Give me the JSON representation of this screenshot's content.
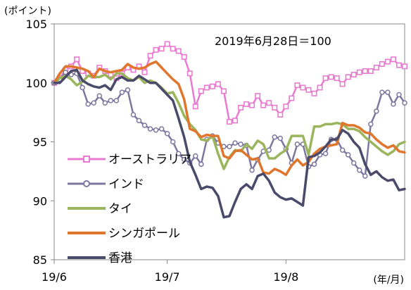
{
  "chart_data": {
    "type": "line",
    "title": "",
    "annotation": "2019年6月28日＝100",
    "ylabel": "(ポイント)",
    "xlabel": "(年/月)",
    "ylim": [
      85,
      105
    ],
    "yticks": [
      85,
      90,
      95,
      100,
      105
    ],
    "xlim": [
      0,
      62
    ],
    "xticks": [
      {
        "pos": 0,
        "label": "19/6"
      },
      {
        "pos": 20,
        "label": "19/7"
      },
      {
        "pos": 41,
        "label": "19/8"
      }
    ],
    "x": [
      0,
      1,
      2,
      3,
      4,
      5,
      6,
      7,
      8,
      9,
      10,
      11,
      12,
      13,
      14,
      15,
      16,
      17,
      18,
      19,
      20,
      21,
      22,
      23,
      24,
      25,
      26,
      27,
      28,
      29,
      30,
      31,
      32,
      33,
      34,
      35,
      36,
      37,
      38,
      39,
      40,
      41,
      42,
      43,
      44,
      45,
      46,
      47,
      48,
      49,
      50,
      51,
      52,
      53,
      54,
      55,
      56,
      57,
      58,
      59,
      60,
      61,
      62
    ],
    "series": [
      {
        "name": "オーストラリア",
        "color": "#e87bcf",
        "marker": "square",
        "values": [
          100.0,
          100.4,
          101.1,
          101.4,
          102.0,
          101.0,
          100.8,
          100.6,
          101.3,
          101.0,
          100.7,
          100.4,
          100.8,
          101.3,
          101.1,
          101.4,
          100.9,
          102.3,
          102.8,
          102.9,
          103.3,
          102.9,
          102.7,
          102.2,
          100.8,
          98.0,
          99.3,
          99.6,
          99.7,
          99.9,
          99.3,
          96.7,
          96.8,
          97.9,
          98.2,
          98.1,
          98.9,
          98.1,
          98.3,
          97.9,
          97.3,
          98.0,
          98.7,
          99.8,
          99.6,
          99.4,
          99.1,
          99.6,
          100.4,
          100.5,
          100.4,
          99.9,
          100.5,
          100.7,
          100.9,
          101.0,
          101.0,
          101.3,
          101.6,
          101.8,
          102.0,
          101.5,
          101.4
        ]
      },
      {
        "name": "インド",
        "color": "#7d779f",
        "marker": "circle",
        "values": [
          100.0,
          100.3,
          100.9,
          100.7,
          100.8,
          99.6,
          98.2,
          98.3,
          98.9,
          98.3,
          98.5,
          98.5,
          99.2,
          99.4,
          97.3,
          96.8,
          96.4,
          96.1,
          96.0,
          96.1,
          95.7,
          95.0,
          94.0,
          93.5,
          93.2,
          93.8,
          93.1,
          95.2,
          95.5,
          94.9,
          94.6,
          94.6,
          94.9,
          94.8,
          94.7,
          92.6,
          93.5,
          94.2,
          94.3,
          95.4,
          95.3,
          94.4,
          93.2,
          94.8,
          94.8,
          92.9,
          93.1,
          93.9,
          94.0,
          95.2,
          95.2,
          94.3,
          93.9,
          93.2,
          92.6,
          92.1,
          96.5,
          97.6,
          99.2,
          99.2,
          98.2,
          99.0,
          98.3
        ]
      },
      {
        "name": "タイ",
        "color": "#9ab55b",
        "marker": "none",
        "values": [
          100.0,
          100.4,
          100.6,
          100.3,
          99.8,
          100.1,
          100.6,
          100.5,
          100.5,
          100.7,
          100.3,
          100.8,
          100.8,
          100.4,
          100.2,
          100.5,
          100.0,
          100.2,
          100.0,
          99.6,
          99.1,
          99.2,
          98.3,
          97.2,
          96.5,
          96.0,
          95.2,
          95.1,
          95.5,
          94.0,
          92.7,
          93.7,
          94.3,
          94.2,
          94.8,
          94.4,
          95.1,
          94.8,
          93.6,
          93.6,
          94.0,
          94.3,
          95.5,
          95.5,
          95.5,
          93.9,
          96.3,
          96.3,
          96.5,
          96.5,
          96.6,
          96.5,
          96.1,
          96.1,
          95.9,
          95.4,
          95.0,
          94.6,
          94.2,
          93.9,
          94.2,
          94.8,
          95.0
        ]
      },
      {
        "name": "シンガポール",
        "color": "#e0762d",
        "marker": "none",
        "values": [
          100.0,
          100.8,
          101.4,
          101.4,
          101.3,
          101.2,
          101.0,
          100.5,
          101.2,
          101.0,
          100.9,
          101.0,
          101.1,
          101.6,
          101.3,
          101.2,
          101.3,
          101.6,
          101.8,
          101.3,
          100.8,
          100.3,
          99.9,
          98.6,
          96.1,
          95.9,
          95.4,
          95.6,
          95.5,
          95.5,
          93.8,
          93.6,
          94.2,
          94.3,
          93.9,
          93.5,
          93.6,
          92.4,
          92.3,
          92.7,
          92.5,
          92.2,
          93.0,
          93.5,
          93.0,
          93.3,
          94.0,
          94.4,
          94.6,
          94.7,
          94.8,
          96.6,
          96.4,
          96.4,
          96.2,
          95.8,
          95.7,
          95.2,
          94.8,
          94.5,
          94.7,
          94.2,
          94.1
        ]
      },
      {
        "name": "香港",
        "color": "#4a4a6a",
        "marker": "none",
        "values": [
          100.0,
          100.0,
          100.5,
          101.0,
          101.1,
          100.2,
          99.9,
          99.7,
          99.6,
          99.8,
          99.4,
          100.3,
          100.5,
          100.2,
          100.2,
          100.6,
          100.3,
          100.0,
          100.0,
          99.5,
          99.0,
          98.5,
          97.0,
          95.4,
          93.3,
          92.2,
          91.0,
          91.2,
          91.1,
          90.4,
          88.6,
          88.7,
          89.9,
          91.0,
          91.4,
          91.0,
          92.1,
          92.3,
          91.7,
          90.7,
          90.3,
          90.1,
          90.2,
          89.9,
          89.6,
          93.7,
          93.8,
          94.1,
          94.6,
          95.2,
          95.2,
          96.0,
          95.7,
          95.0,
          94.5,
          93.1,
          92.2,
          92.5,
          92.0,
          91.7,
          91.8,
          90.9,
          91.0
        ]
      }
    ],
    "legend_position": "bottom-left",
    "grid": false
  }
}
